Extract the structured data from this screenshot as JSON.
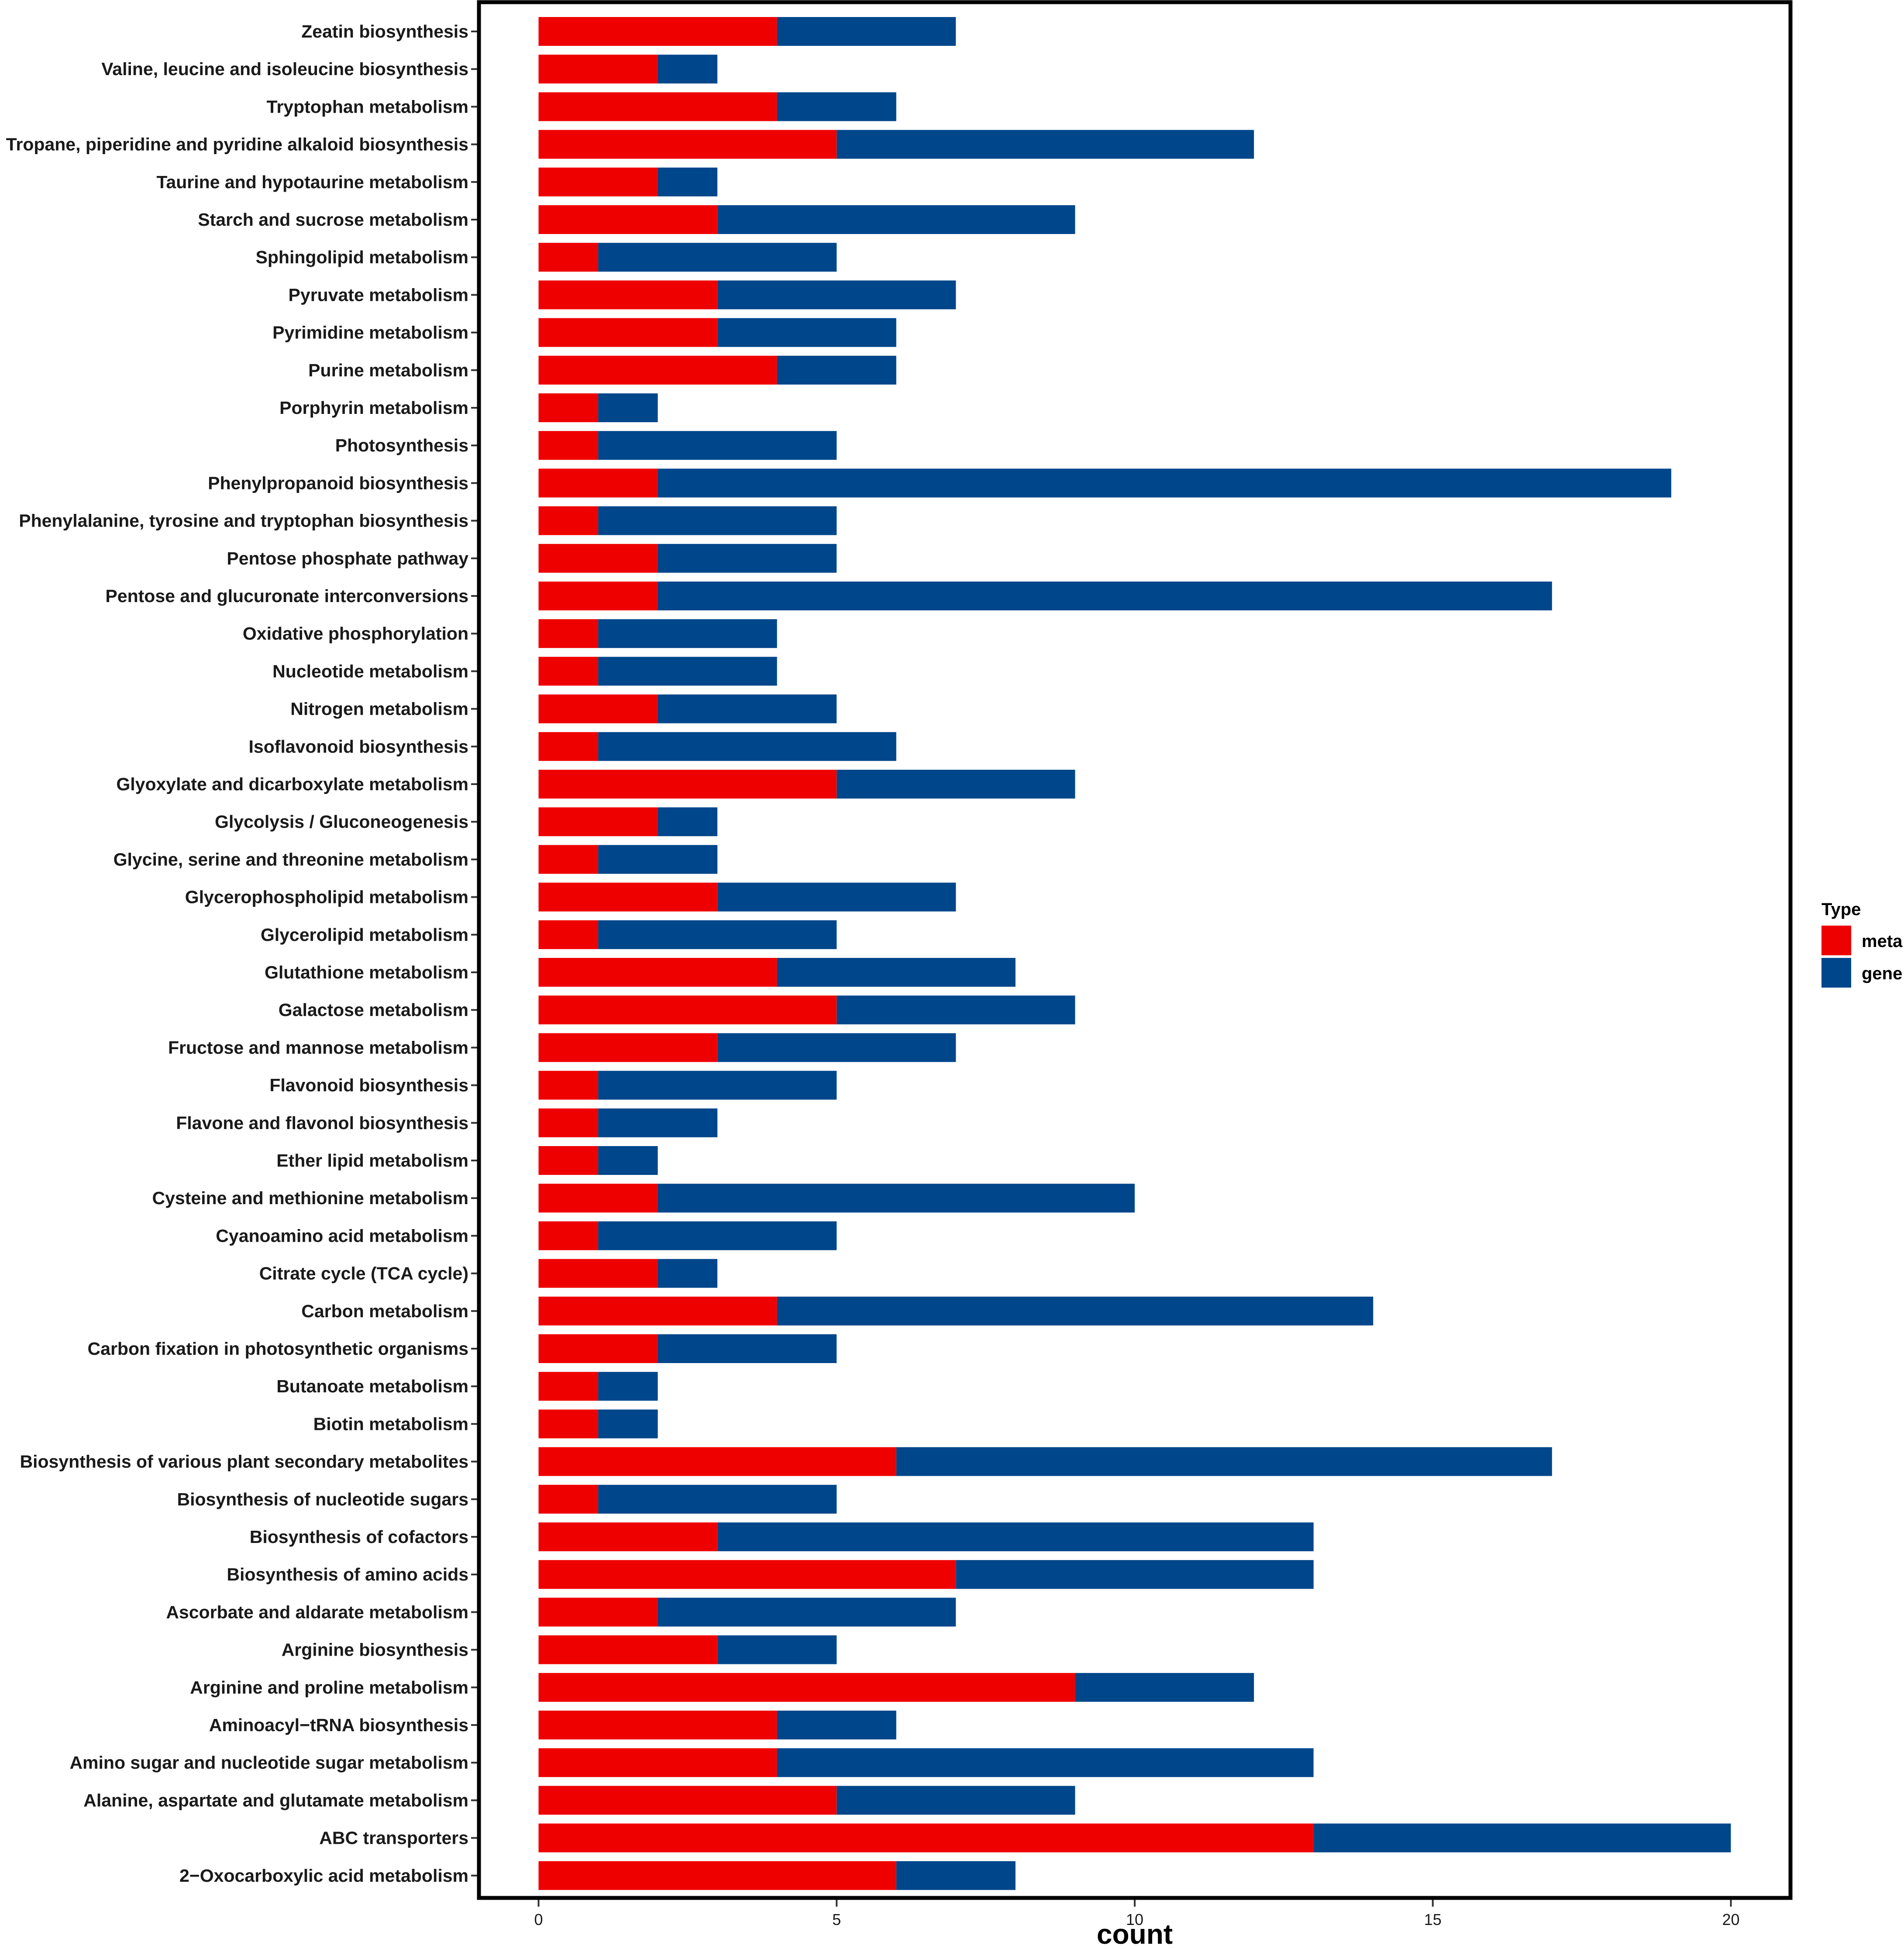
{
  "chart_data": {
    "type": "bar",
    "orientation": "horizontal",
    "stacked": true,
    "xlabel": "count",
    "ylabel": "",
    "xlim": [
      -1,
      21
    ],
    "xticks": [
      0,
      5,
      10,
      15,
      20
    ],
    "grid": false,
    "legend": {
      "title": "Type",
      "position": "right"
    },
    "colors": {
      "meta": "#ee0000",
      "gene": "#00468b"
    },
    "categories": [
      "Zeatin biosynthesis",
      "Valine, leucine and isoleucine biosynthesis",
      "Tryptophan metabolism",
      "Tropane, piperidine and pyridine alkaloid biosynthesis",
      "Taurine and hypotaurine metabolism",
      "Starch and sucrose metabolism",
      "Sphingolipid metabolism",
      "Pyruvate metabolism",
      "Pyrimidine metabolism",
      "Purine metabolism",
      "Porphyrin metabolism",
      "Photosynthesis",
      "Phenylpropanoid biosynthesis",
      "Phenylalanine, tyrosine and tryptophan biosynthesis",
      "Pentose phosphate pathway",
      "Pentose and glucuronate interconversions",
      "Oxidative phosphorylation",
      "Nucleotide metabolism",
      "Nitrogen metabolism",
      "Isoflavonoid biosynthesis",
      "Glyoxylate and dicarboxylate metabolism",
      "Glycolysis / Gluconeogenesis",
      "Glycine, serine and threonine metabolism",
      "Glycerophospholipid metabolism",
      "Glycerolipid metabolism",
      "Glutathione metabolism",
      "Galactose metabolism",
      "Fructose and mannose metabolism",
      "Flavonoid biosynthesis",
      "Flavone and flavonol biosynthesis",
      "Ether lipid metabolism",
      "Cysteine and methionine metabolism",
      "Cyanoamino acid metabolism",
      "Citrate cycle (TCA cycle)",
      "Carbon metabolism",
      "Carbon fixation in photosynthetic organisms",
      "Butanoate metabolism",
      "Biotin metabolism",
      "Biosynthesis of various plant secondary metabolites",
      "Biosynthesis of nucleotide sugars",
      "Biosynthesis of cofactors",
      "Biosynthesis of amino acids",
      "Ascorbate and aldarate metabolism",
      "Arginine biosynthesis",
      "Arginine and proline metabolism",
      "Aminoacyl−tRNA biosynthesis",
      "Amino sugar and nucleotide sugar metabolism",
      "Alanine, aspartate and glutamate metabolism",
      "ABC transporters",
      "2−Oxocarboxylic acid metabolism"
    ],
    "series": [
      {
        "name": "meta",
        "values": [
          4,
          2,
          4,
          5,
          2,
          3,
          1,
          3,
          3,
          4,
          1,
          1,
          2,
          1,
          2,
          2,
          1,
          1,
          2,
          1,
          5,
          2,
          1,
          3,
          1,
          4,
          5,
          3,
          1,
          1,
          1,
          2,
          1,
          2,
          4,
          2,
          1,
          1,
          6,
          1,
          3,
          7,
          2,
          3,
          9,
          4,
          4,
          5,
          13,
          6
        ]
      },
      {
        "name": "gene",
        "values": [
          3,
          1,
          2,
          7,
          1,
          6,
          4,
          4,
          3,
          2,
          1,
          4,
          17,
          4,
          3,
          15,
          3,
          3,
          3,
          5,
          4,
          1,
          2,
          4,
          4,
          4,
          4,
          4,
          4,
          2,
          1,
          8,
          4,
          1,
          10,
          3,
          1,
          1,
          11,
          4,
          10,
          6,
          5,
          2,
          3,
          2,
          9,
          4,
          7,
          2
        ]
      }
    ]
  }
}
